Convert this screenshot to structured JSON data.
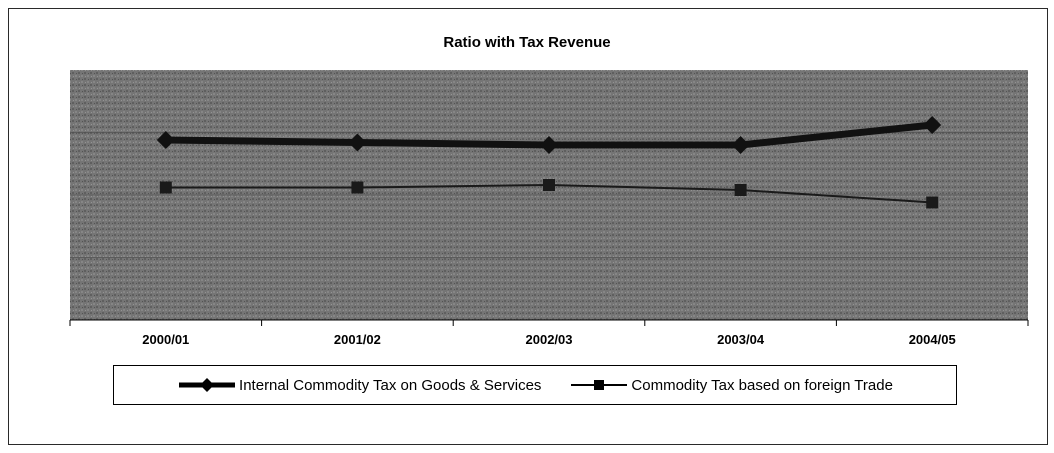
{
  "chart_data": {
    "type": "line",
    "title": "Ratio with Tax Revenue",
    "categories": [
      "2000/01",
      "2001/02",
      "2002/03",
      "2003/04",
      "2004/05"
    ],
    "series": [
      {
        "name": "Internal Commodity Tax on Goods & Services",
        "values": [
          72,
          71,
          70,
          70,
          78
        ],
        "color": "#111111",
        "marker": "diamond"
      },
      {
        "name": "Commodity Tax based on foreign Trade",
        "values": [
          53,
          53,
          54,
          52,
          47
        ],
        "color": "#1a1a1a",
        "marker": "square"
      }
    ],
    "ylim": [
      0,
      100
    ],
    "grid": true,
    "legend_position": "bottom",
    "plot_background": "#6e6e6e"
  }
}
